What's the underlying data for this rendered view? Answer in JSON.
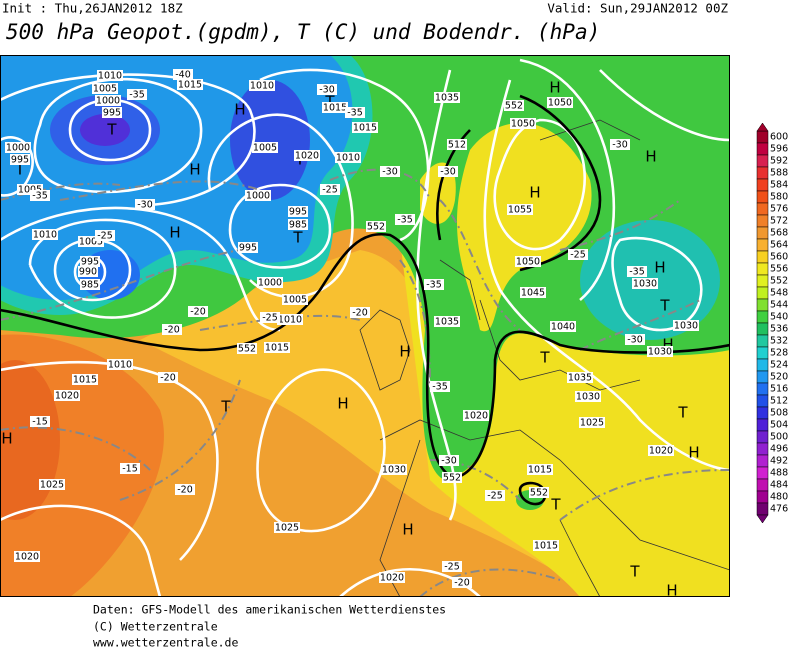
{
  "header": {
    "init": "Init : Thu,26JAN2012 18Z",
    "valid": "Valid: Sun,29JAN2012 00Z",
    "title": "500 hPa Geopot.(gpdm), T (C) und Bodendr. (hPa)"
  },
  "colorbar": {
    "levels": [
      600,
      596,
      592,
      588,
      584,
      580,
      576,
      572,
      568,
      564,
      560,
      556,
      552,
      548,
      544,
      540,
      536,
      532,
      528,
      524,
      520,
      516,
      512,
      508,
      504,
      500,
      496,
      492,
      488,
      484,
      480,
      476
    ],
    "colors": [
      "#a0002a",
      "#c00040",
      "#d82050",
      "#e83030",
      "#f04020",
      "#f05018",
      "#f06820",
      "#f08028",
      "#f09830",
      "#f8b030",
      "#f8d020",
      "#f0e820",
      "#e0f020",
      "#c0f020",
      "#80e030",
      "#40d040",
      "#20c060",
      "#20c8a0",
      "#20d0d0",
      "#20b8e8",
      "#2098f0",
      "#2070f0",
      "#2050e8",
      "#3030e0",
      "#5020d8",
      "#7020d0",
      "#9020d0",
      "#b020d0",
      "#d020d0",
      "#c010b0",
      "#a00090",
      "#700070"
    ]
  },
  "map": {
    "labels": [
      "T",
      "995",
      "1000",
      "1005",
      "1010",
      "1015",
      "-40",
      "-35",
      "T",
      "1000",
      "995",
      "1005",
      "-35",
      "H",
      "H",
      "1010",
      "T",
      "-30",
      "1015",
      "-35",
      "1015",
      "1005",
      "T",
      "1020",
      "1010",
      "1000",
      "995",
      "985",
      "T",
      "995",
      "H",
      "1010",
      "1005",
      "995",
      "990",
      "985",
      "-30",
      "-25",
      "-25",
      "-30",
      "1000",
      "1005",
      "1010",
      "1015",
      "-25",
      "-20",
      "-20",
      "552",
      "-20",
      "1035",
      "552",
      "H",
      "1050",
      "1050",
      "H",
      "1055",
      "512",
      "-30",
      "-35",
      "552",
      "1050",
      "1045",
      "1040",
      "1035",
      "-35",
      "H",
      "T",
      "1035",
      "1030",
      "1025",
      "1020",
      "-35",
      "1020",
      "H",
      "-30",
      "H",
      "1030",
      "T",
      "1030",
      "H",
      "1030",
      "-30",
      "-35",
      "-25",
      "H",
      "T",
      "-20",
      "1020",
      "-15",
      "H",
      "1010",
      "1015",
      "1025",
      "-15",
      "-20",
      "1020",
      "1025",
      "1030",
      "H",
      "1020",
      "-20",
      "-25",
      "1015",
      "T",
      "552",
      "-25",
      "-30",
      "552",
      "1015",
      "T",
      "H",
      "T",
      "H"
    ]
  },
  "footer": [
    "Daten: GFS-Modell des amerikanischen Wetterdienstes",
    "(C) Wetterzentrale",
    "www.wetterzentrale.de"
  ]
}
